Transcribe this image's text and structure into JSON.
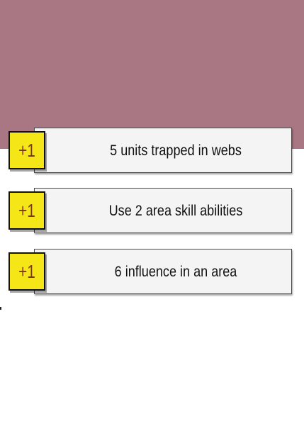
{
  "colors": {
    "header_band": "#a97684",
    "badge_fill": "#f5e617",
    "badge_text": "#7a3b12",
    "card_fill": "#f4f4f4"
  },
  "objectives": [
    {
      "badge": "+1",
      "text": "5 units trapped in webs"
    },
    {
      "badge": "+1",
      "text": "Use 2 area skill abilities"
    },
    {
      "badge": "+1",
      "text": "6 influence in an area"
    }
  ]
}
